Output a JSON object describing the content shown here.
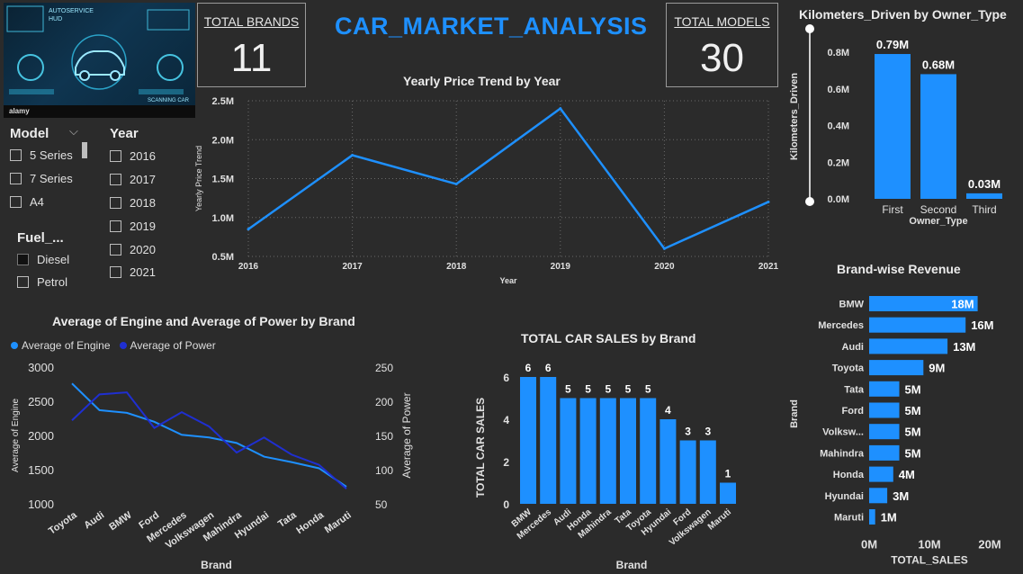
{
  "header": {
    "title": "CAR_MARKET_ANALYSIS"
  },
  "kpis": [
    {
      "label": "TOTAL BRANDS",
      "value": "11"
    },
    {
      "label": "TOTAL MODELS",
      "value": "30"
    }
  ],
  "banner": {
    "line1": "AUTOSERVICE",
    "line2": "HUD",
    "caption": "SCANNING CAR",
    "watermark": "alamy"
  },
  "slicers": {
    "model": {
      "title": "Model",
      "items": [
        "5 Series",
        "7 Series",
        "A4"
      ]
    },
    "year": {
      "title": "Year",
      "items": [
        "2016",
        "2017",
        "2018",
        "2019",
        "2020",
        "2021"
      ]
    },
    "fuel": {
      "title": "Fuel_...",
      "items": [
        "Diesel",
        "Petrol"
      ]
    }
  },
  "colors": {
    "accent": "#1e90ff",
    "dark_series": "#1f2fd1",
    "background": "#2b2b2b"
  },
  "chart_data": [
    {
      "id": "yearly_price",
      "type": "line",
      "title": "Yearly Price Trend by Year",
      "xlabel": "Year",
      "ylabel": "Yearly Price Trend",
      "x": [
        "2016",
        "2017",
        "2018",
        "2019",
        "2020",
        "2021"
      ],
      "values": [
        0.85,
        1.8,
        1.43,
        2.4,
        0.6,
        1.2
      ],
      "ylim": [
        0.5,
        2.5
      ],
      "yticks": [
        "0.5M",
        "1.0M",
        "1.5M",
        "2.0M",
        "2.5M"
      ],
      "grid": true
    },
    {
      "id": "km_owner",
      "type": "bar",
      "title": "Kilometers_Driven by Owner_Type",
      "xlabel": "Owner_Type",
      "ylabel": "Kilometers_Driven",
      "categories": [
        "First",
        "Second",
        "Third"
      ],
      "values": [
        0.79,
        0.68,
        0.03
      ],
      "data_labels": [
        "0.79M",
        "0.68M",
        "0.03M"
      ],
      "ylim": [
        0,
        0.8
      ],
      "yticks": [
        "0.0M",
        "0.2M",
        "0.4M",
        "0.6M",
        "0.8M"
      ]
    },
    {
      "id": "engine_power",
      "type": "line",
      "title": "Average of Engine and Average of Power by Brand",
      "xlabel": "Brand",
      "ylabel": "Average of Engine",
      "ylabel_right": "Average of Power",
      "categories": [
        "Toyota",
        "Audi",
        "BMW",
        "Ford",
        "Mercedes",
        "Volkswagen",
        "Mahindra",
        "Hyundai",
        "Tata",
        "Honda",
        "Maruti"
      ],
      "series": [
        {
          "name": "Average of Engine",
          "axis": "left",
          "color": "#1e90ff",
          "values": [
            2760,
            2370,
            2330,
            2200,
            2010,
            1970,
            1890,
            1690,
            1610,
            1520,
            1250
          ]
        },
        {
          "name": "Average of Power",
          "axis": "right",
          "color": "#1f2fd1",
          "values": [
            172,
            210,
            213,
            161,
            184,
            163,
            125,
            147,
            122,
            107,
            72
          ]
        }
      ],
      "ylim": [
        1000,
        3000
      ],
      "ylim_right": [
        50,
        250
      ],
      "yticks": [
        "1000",
        "1500",
        "2000",
        "2500",
        "3000"
      ],
      "yticks_right": [
        "50",
        "100",
        "150",
        "200",
        "250"
      ],
      "legend": "top-left"
    },
    {
      "id": "car_sales",
      "type": "bar",
      "title": "TOTAL CAR SALES by Brand",
      "xlabel": "Brand",
      "ylabel": "TOTAL CAR SALES",
      "categories": [
        "BMW",
        "Mercedes",
        "Audi",
        "Honda",
        "Mahindra",
        "Tata",
        "Toyota",
        "Hyundai",
        "Ford",
        "Volkswagen",
        "Maruti"
      ],
      "values": [
        6,
        6,
        5,
        5,
        5,
        5,
        5,
        4,
        3,
        3,
        1
      ],
      "ylim": [
        0,
        6
      ],
      "yticks": [
        "0",
        "2",
        "4",
        "6"
      ]
    },
    {
      "id": "brand_revenue",
      "type": "bar",
      "orientation": "horizontal",
      "title": "Brand-wise Revenue",
      "xlabel": "TOTAL_SALES",
      "ylabel": "Brand",
      "categories": [
        "BMW",
        "Mercedes",
        "Audi",
        "Toyota",
        "Tata",
        "Ford",
        "Volksw...",
        "Mahindra",
        "Honda",
        "Hyundai",
        "Maruti"
      ],
      "values": [
        18,
        16,
        13,
        9,
        5,
        5,
        5,
        5,
        4,
        3,
        1
      ],
      "data_labels": [
        "18M",
        "16M",
        "13M",
        "9M",
        "5M",
        "5M",
        "5M",
        "5M",
        "4M",
        "3M",
        "1M"
      ],
      "xlim": [
        0,
        20
      ],
      "xticks": [
        "0M",
        "10M",
        "20M"
      ]
    }
  ]
}
